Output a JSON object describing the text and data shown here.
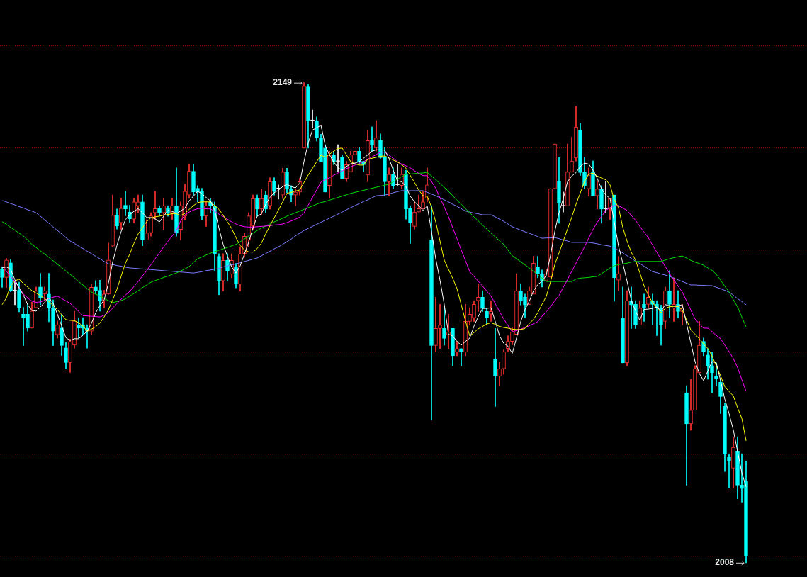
{
  "chart_data": {
    "type": "candlestick",
    "categories": [
      null,
      null,
      null,
      null,
      null,
      null,
      null,
      null,
      null,
      null,
      null,
      null,
      null,
      null,
      null,
      null,
      null,
      null,
      null,
      null,
      null,
      null,
      null,
      null,
      null,
      null,
      null,
      null,
      null,
      null,
      null,
      null,
      null,
      null,
      null,
      null,
      null,
      null,
      null,
      null,
      null,
      null,
      null,
      null,
      null,
      null,
      null,
      null,
      null,
      null,
      null,
      null,
      null,
      null,
      null,
      null,
      null,
      null,
      null,
      null,
      null,
      null,
      null,
      null,
      null,
      null,
      null,
      null,
      null,
      null,
      null,
      null,
      null,
      null,
      null,
      null,
      null,
      null,
      null,
      null,
      null,
      null,
      null,
      null,
      null,
      null,
      null,
      null,
      null,
      null,
      null,
      null,
      null,
      null,
      null,
      null,
      null,
      null,
      null,
      null,
      null,
      null,
      null,
      null,
      null,
      null,
      null,
      null,
      null,
      null,
      null,
      null,
      null,
      null,
      null,
      null,
      null,
      null,
      null,
      null,
      null,
      null,
      null,
      null,
      null,
      null,
      null,
      null,
      null,
      null,
      null,
      null,
      null,
      null,
      null,
      null,
      null,
      null,
      null,
      null,
      null,
      null,
      null,
      null,
      null,
      null,
      null,
      null,
      null,
      null,
      null,
      null,
      null,
      null,
      null,
      null,
      null,
      null,
      null,
      null,
      null,
      null,
      null,
      null,
      null,
      null,
      null,
      null,
      null,
      null,
      null,
      null,
      null,
      null,
      null,
      null
    ],
    "ohlc": [
      [
        2094.1,
        2094.9,
        2088.9,
        2091.8
      ],
      [
        2091.8,
        2097.4,
        2088.9,
        2096.9
      ],
      [
        2096.1,
        2097,
        2087.6,
        2087.8
      ],
      [
        2087.9,
        2090.8,
        2083.8,
        2087.9
      ],
      [
        2088,
        2090.4,
        2081.7,
        2082.8
      ],
      [
        2081,
        2083,
        2071.8,
        2079.9
      ],
      [
        2081,
        2084,
        2076,
        2076.9
      ],
      [
        2076.9,
        2084.5,
        2076.9,
        2081.9
      ],
      [
        2082.9,
        2089,
        2082.8,
        2087.8
      ],
      [
        2089,
        2093,
        2083.8,
        2085.9
      ],
      [
        2086.9,
        2089,
        2084.9,
        2087.9
      ],
      [
        2086.9,
        2093,
        2078.8,
        2082.9
      ],
      [
        2082.9,
        2085.2,
        2071.8,
        2076
      ],
      [
        2075,
        2079,
        2074,
        2077.9
      ],
      [
        2076.9,
        2081,
        2068.9,
        2071.8
      ],
      [
        2071.1,
        2072.7,
        2064.9,
        2066.8
      ],
      [
        2066.8,
        2073.7,
        2063.9,
        2072.9
      ],
      [
        2071.9,
        2081.9,
        2071,
        2079
      ],
      [
        2077.9,
        2080,
        2074,
        2076.9
      ],
      [
        2077.9,
        2080,
        2074.9,
        2076.9
      ],
      [
        2076.9,
        2077.9,
        2071,
        2076
      ],
      [
        2076,
        2089.9,
        2075,
        2088.9
      ],
      [
        2089,
        2090.9,
        2086.9,
        2088
      ],
      [
        2088,
        2091,
        2081.9,
        2085
      ],
      [
        2084.9,
        2088,
        2082.9,
        2086.9
      ],
      [
        2086.9,
        2101.9,
        2086.8,
        2096.9
      ],
      [
        2101,
        2116,
        2100.8,
        2110.1
      ],
      [
        2110.1,
        2111.9,
        2106,
        2106.9
      ],
      [
        2107.9,
        2115.1,
        2105.9,
        2112.1
      ],
      [
        2113,
        2117.2,
        2109.9,
        2111.9
      ],
      [
        2111,
        2113,
        2108,
        2109
      ],
      [
        2108.9,
        2115,
        2107.8,
        2114
      ],
      [
        2112.8,
        2116,
        2110.8,
        2114
      ],
      [
        2114,
        2116,
        2101.1,
        2102.8
      ],
      [
        2102.8,
        2108.8,
        2102.8,
        2104.9
      ],
      [
        2104.9,
        2110.8,
        2103.9,
        2109.9
      ],
      [
        2110.8,
        2117.1,
        2108.9,
        2112
      ],
      [
        2112,
        2112.9,
        2109.9,
        2110.8
      ],
      [
        2110.8,
        2115,
        2105.9,
        2112.9
      ],
      [
        2112,
        2112.9,
        2109.8,
        2110.8
      ],
      [
        2110.8,
        2115,
        2108.8,
        2112.9
      ],
      [
        2112.9,
        2124,
        2103.9,
        2104.8
      ],
      [
        2105.9,
        2114,
        2102.8,
        2112.9
      ],
      [
        2109.8,
        2119.2,
        2108.8,
        2117.1
      ],
      [
        2116,
        2125,
        2115,
        2123
      ],
      [
        2123,
        2125,
        2116,
        2116.9
      ],
      [
        2118,
        2118.8,
        2114,
        2116.9
      ],
      [
        2117.1,
        2118,
        2108.8,
        2109.8
      ],
      [
        2109.8,
        2114,
        2106.8,
        2112.9
      ],
      [
        2114,
        2115,
        2110.8,
        2112.8
      ],
      [
        2112.8,
        2114,
        2093.8,
        2098.8
      ],
      [
        2098,
        2098.8,
        2086.7,
        2090.8
      ],
      [
        2090.8,
        2098.8,
        2087.8,
        2096.8
      ],
      [
        2096.8,
        2098.8,
        2090.8,
        2093.8
      ],
      [
        2092.8,
        2098.8,
        2091.7,
        2096.8
      ],
      [
        2094.9,
        2095.9,
        2088.7,
        2089.8
      ],
      [
        2089.8,
        2100.8,
        2087.8,
        2098.8
      ],
      [
        2098.8,
        2104.9,
        2097.8,
        2103.9
      ],
      [
        2102.8,
        2110.8,
        2100.9,
        2109.9
      ],
      [
        2106.9,
        2116,
        2105.9,
        2115
      ],
      [
        2115,
        2116,
        2109.8,
        2111.9
      ],
      [
        2111.9,
        2117.8,
        2110.1,
        2115
      ],
      [
        2116,
        2117.1,
        2110.8,
        2111.9
      ],
      [
        2112.9,
        2121.1,
        2111.9,
        2119.9
      ],
      [
        2119.9,
        2121.1,
        2116,
        2117.1
      ],
      [
        2117.9,
        2119,
        2114.8,
        2117.9
      ],
      [
        2116,
        2123.9,
        2115,
        2122.8
      ],
      [
        2122.8,
        2123.9,
        2116.7,
        2117.9
      ],
      [
        2117.9,
        2118.8,
        2114,
        2116
      ],
      [
        2116,
        2117.9,
        2112.9,
        2116.9
      ],
      [
        2116.9,
        2120.9,
        2116,
        2119.9
      ],
      [
        2129.8,
        2149,
        2129.8,
        2148
      ],
      [
        2147.8,
        2148.5,
        2129.8,
        2137.9
      ],
      [
        2137.9,
        2141,
        2135.8,
        2137.9
      ],
      [
        2137.9,
        2139,
        2131.9,
        2132.8
      ],
      [
        2132.8,
        2133.9,
        2125.8,
        2125.9
      ],
      [
        2129.8,
        2130.8,
        2116.9,
        2116.9
      ],
      [
        2118.8,
        2128.9,
        2115,
        2127.8
      ],
      [
        2127.8,
        2128.9,
        2124.9,
        2125.9
      ],
      [
        2125.9,
        2130.8,
        2122.8,
        2125.9
      ],
      [
        2127,
        2127.8,
        2120.9,
        2120.9
      ],
      [
        2120.9,
        2125.9,
        2119.9,
        2124.9
      ],
      [
        2122.8,
        2128.9,
        2122.8,
        2127.8
      ],
      [
        2127.8,
        2128.9,
        2127.8,
        2128.9
      ],
      [
        2128.9,
        2129.9,
        2124.9,
        2125.9
      ],
      [
        2125.9,
        2125.9,
        2122.8,
        2124.9
      ],
      [
        2121.9,
        2135,
        2119.9,
        2132
      ],
      [
        2132,
        2136,
        2128.9,
        2130.9
      ],
      [
        2129.9,
        2137.9,
        2128.9,
        2132.8
      ],
      [
        2132,
        2134,
        2126.8,
        2127
      ],
      [
        2127.2,
        2129.9,
        2115.8,
        2119.9
      ],
      [
        2119.9,
        2124,
        2115.8,
        2122.1
      ],
      [
        2122.1,
        2124,
        2117.8,
        2118.8
      ],
      [
        2119,
        2125.1,
        2118.8,
        2119
      ],
      [
        2118.8,
        2124,
        2117.8,
        2122.1
      ],
      [
        2122.1,
        2123.3,
        2108.9,
        2111.9
      ],
      [
        2112.1,
        2112.9,
        2101.8,
        2107.7
      ],
      [
        2106.8,
        2114,
        2106,
        2111
      ],
      [
        2111,
        2116,
        2111,
        2112
      ],
      [
        2112,
        2117.1,
        2112,
        2114
      ],
      [
        2115,
        2124,
        2114,
        2119
      ],
      [
        2102.8,
        2112.9,
        2049.9,
        2071.8
      ],
      [
        2071.8,
        2086,
        2069.9,
        2076.8
      ],
      [
        2076.8,
        2083.9,
        2070.9,
        2077.8
      ],
      [
        2076.8,
        2082.9,
        2071.9,
        2073.9
      ],
      [
        2074.9,
        2081,
        2070.9,
        2075.8
      ],
      [
        2076.8,
        2076.8,
        2065.9,
        2068.8
      ],
      [
        2069.9,
        2073,
        2068.8,
        2070.9
      ],
      [
        2070.9,
        2070.9,
        2065.9,
        2069.9
      ],
      [
        2069.9,
        2083.9,
        2068.8,
        2078.9
      ],
      [
        2078.9,
        2082.9,
        2077.8,
        2081
      ],
      [
        2079.9,
        2085,
        2078.9,
        2083.9
      ],
      [
        2085,
        2090,
        2081.8,
        2086
      ],
      [
        2086,
        2087.9,
        2081.8,
        2082.7
      ],
      [
        2081.8,
        2082.7,
        2077.8,
        2079.9
      ],
      [
        2081,
        2085,
        2078.9,
        2081.8
      ],
      [
        2067.9,
        2076.8,
        2053.9,
        2062.8
      ],
      [
        2062.8,
        2066.9,
        2060,
        2065
      ],
      [
        2065,
        2070.5,
        2063.3,
        2070
      ],
      [
        2070.9,
        2074.7,
        2069.9,
        2073
      ],
      [
        2073,
        2077,
        2072,
        2075.8
      ],
      [
        2075.1,
        2092.9,
        2075.1,
        2087.9
      ],
      [
        2087.9,
        2090,
        2083.7,
        2084.8
      ],
      [
        2086,
        2086.9,
        2079.9,
        2083.7
      ],
      [
        2083.9,
        2089,
        2083.9,
        2087.9
      ],
      [
        2086.9,
        2098,
        2086.9,
        2096
      ],
      [
        2095,
        2098,
        2091.7,
        2092.8
      ],
      [
        2092.9,
        2094,
        2089,
        2090.8
      ],
      [
        2090.8,
        2094.2,
        2090.8,
        2092.9
      ],
      [
        2091.9,
        2117.9,
        2091.9,
        2117.9
      ],
      [
        2117.9,
        2131,
        2117.9,
        2131
      ],
      [
        2120,
        2127.2,
        2107.7,
        2113.8
      ],
      [
        2112.8,
        2116.9,
        2111,
        2112.8
      ],
      [
        2112.8,
        2131,
        2112.8,
        2122.8
      ],
      [
        2122.8,
        2133,
        2122.8,
        2126
      ],
      [
        2126.9,
        2142.1,
        2126,
        2136
      ],
      [
        2135,
        2137.1,
        2121.8,
        2122.6
      ],
      [
        2122.8,
        2127.2,
        2117.8,
        2118.8
      ],
      [
        2117.8,
        2124,
        2115.7,
        2121.9
      ],
      [
        2122.8,
        2126,
        2115.8,
        2115.8
      ],
      [
        2115.8,
        2119.9,
        2111.9,
        2117.8
      ],
      [
        2117.9,
        2118.8,
        2107.7,
        2111.9
      ],
      [
        2111.9,
        2119.9,
        2110.8,
        2111.9
      ],
      [
        2111.9,
        2115,
        2108.8,
        2115
      ],
      [
        2116,
        2116,
        2084.8,
        2091.7
      ],
      [
        2091,
        2098,
        2087.9,
        2092.9
      ],
      [
        2079.9,
        2089,
        2066.7,
        2066.7
      ],
      [
        2066.7,
        2087.9,
        2065.8,
        2085
      ],
      [
        2085,
        2089,
        2076.8,
        2083.7
      ],
      [
        2083.9,
        2085,
        2076.8,
        2077.8
      ],
      [
        2077.8,
        2085,
        2077.8,
        2082.8
      ],
      [
        2083.9,
        2086.9,
        2078.9,
        2082.8
      ],
      [
        2083.9,
        2089,
        2082.8,
        2086
      ],
      [
        2085,
        2086.9,
        2077.8,
        2083.9
      ],
      [
        2083.9,
        2085,
        2074.7,
        2082.8
      ],
      [
        2082.8,
        2083.7,
        2071.9,
        2077.8
      ],
      [
        2078.9,
        2089,
        2076.8,
        2087.9
      ],
      [
        2087.9,
        2093.8,
        2079.9,
        2083.9
      ],
      [
        2082.8,
        2091.7,
        2078.9,
        2083.9
      ],
      [
        2083.9,
        2087.9,
        2079.9,
        2081.8
      ],
      [
        2081.8,
        2083.9,
        2077.8,
        2082.8
      ],
      [
        2057.9,
        2060,
        2030.8,
        2048.8
      ],
      [
        2048.8,
        2061.9,
        2046.9,
        2052.8
      ],
      [
        2052.8,
        2065.9,
        2052.8,
        2065
      ],
      [
        2063.8,
        2078.9,
        2063.8,
        2071.9
      ],
      [
        2073,
        2074,
        2068.8,
        2069.9
      ],
      [
        2069,
        2070.9,
        2061.9,
        2065.9
      ],
      [
        2065.9,
        2069.9,
        2057.9,
        2063.8
      ],
      [
        2062.9,
        2066.7,
        2060,
        2061.9
      ],
      [
        2061,
        2061.9,
        2051.8,
        2056.8
      ],
      [
        2053.9,
        2054.9,
        2034.8,
        2039.9
      ],
      [
        2039,
        2040,
        2029.9,
        2037.8
      ],
      [
        2035.8,
        2045,
        2029.9,
        2041.9
      ],
      [
        2040.8,
        2045,
        2026.8,
        2030.8
      ],
      [
        2030.8,
        2040,
        2025.8,
        2029.8
      ],
      [
        2031.9,
        2037.9,
        2008,
        2010
      ]
    ],
    "colors": [
      "#00ffff",
      "#ff3232",
      "#00ffff",
      "#ffffff",
      "#00ffff",
      "#00ffff",
      "#00ffff",
      "#ff3232",
      "#ff3232",
      "#00ffff",
      "#ff3232",
      "#00ffff",
      "#00ffff",
      "#ff3232",
      "#00ffff",
      "#00ffff",
      "#ff3232",
      "#ff3232",
      "#00ffff",
      "#00ffff",
      "#00ffff",
      "#ff3232",
      "#00ffff",
      "#00ffff",
      "#ff3232",
      "#ff3232",
      "#ff3232",
      "#00ffff",
      "#ff3232",
      "#00ffff",
      "#00ffff",
      "#ff3232",
      "#ff3232",
      "#00ffff",
      "#ff3232",
      "#ff3232",
      "#ff3232",
      "#00ffff",
      "#ff3232",
      "#00ffff",
      "#ff3232",
      "#00ffff",
      "#ff3232",
      "#ff3232",
      "#ff3232",
      "#00ffff",
      "#00ffff",
      "#00ffff",
      "#ff3232",
      "#00ffff",
      "#00ffff",
      "#00ffff",
      "#ff3232",
      "#00ffff",
      "#ff3232",
      "#00ffff",
      "#ff3232",
      "#ff3232",
      "#ff3232",
      "#ff3232",
      "#00ffff",
      "#ff3232",
      "#00ffff",
      "#ff3232",
      "#00ffff",
      "#ffffff",
      "#ff3232",
      "#00ffff",
      "#00ffff",
      "#ff3232",
      "#ff3232",
      "#ff3232",
      "#00ffff",
      "#ffffff",
      "#00ffff",
      "#00ffff",
      "#00ffff",
      "#ff3232",
      "#00ffff",
      "#ffffff",
      "#00ffff",
      "#ff3232",
      "#ff3232",
      "#ff3232",
      "#00ffff",
      "#00ffff",
      "#ff3232",
      "#00ffff",
      "#ff3232",
      "#00ffff",
      "#00ffff",
      "#ff3232",
      "#00ffff",
      "#ffffff",
      "#ff3232",
      "#00ffff",
      "#00ffff",
      "#ff3232",
      "#ff3232",
      "#ff3232",
      "#ff3232",
      "#00ffff",
      "#ff3232",
      "#ff3232",
      "#00ffff",
      "#ff3232",
      "#00ffff",
      "#ff3232",
      "#00ffff",
      "#ff3232",
      "#ff3232",
      "#ff3232",
      "#ff3232",
      "#00ffff",
      "#00ffff",
      "#ff3232",
      "#00ffff",
      "#ff3232",
      "#ff3232",
      "#ff3232",
      "#ff3232",
      "#ff3232",
      "#00ffff",
      "#00ffff",
      "#ff3232",
      "#ff3232",
      "#00ffff",
      "#00ffff",
      "#ff3232",
      "#ff3232",
      "#ff3232",
      "#00ffff",
      "#ffffff",
      "#ff3232",
      "#ff3232",
      "#ff3232",
      "#00ffff",
      "#00ffff",
      "#ff3232",
      "#00ffff",
      "#ff3232",
      "#00ffff",
      "#ffffff",
      "#ff3232",
      "#00ffff",
      "#ff3232",
      "#00ffff",
      "#ff3232",
      "#00ffff",
      "#00ffff",
      "#ff3232",
      "#00ffff",
      "#ff3232",
      "#00ffff",
      "#00ffff",
      "#00ffff",
      "#ff3232",
      "#00ffff",
      "#ff3232",
      "#00ffff",
      "#ff3232",
      "#00ffff",
      "#ff3232",
      "#ff3232",
      "#ff3232",
      "#00ffff",
      "#00ffff",
      "#00ffff",
      "#00ffff",
      "#00ffff",
      "#00ffff",
      "#00ffff",
      "#ff3232",
      "#00ffff",
      "#00ffff",
      "#00ffff"
    ],
    "series": [
      {
        "type": "line",
        "color": "#ffffff",
        "values": [
          2094.6,
          2094.9,
          2094.2,
          2091.1,
          2088.7,
          2086.6,
          2083.8,
          2082.1,
          2081.9,
          2083.1,
          2084.5,
          2085.8,
          2084.2,
          2081,
          2077.6,
          2074.1,
          2073.3,
          2073.8,
          2073.8,
          2074.8,
          2076,
          2078.3,
          2081.4,
          2083.5,
          2085.2,
          2090.1,
          2096.3,
          2101.2,
          2105.3,
          2108.8,
          2110.2,
          2111.2,
          2112,
          2110.8,
          2109.4,
          2109.4,
          2109,
          2108.1,
          2109.8,
          2111.5,
          2111.2,
          2110.6,
          2111.3,
          2112.2,
          2114.3,
          2115.7,
          2117.1,
          2116.4,
          2115.3,
          2114.3,
          2111.5,
          2106.3,
          2101.5,
          2098,
          2094.9,
          2093.1,
          2095.2,
          2098.7,
          2102.2,
          2106.3,
          2109.8,
          2110.5,
          2113.3,
          2115.3,
          2116.7,
          2117.4,
          2118.5,
          2119.2,
          2118.5,
          2118.1,
          2119.5,
          2125.8,
          2131.3,
          2135.1,
          2135.8,
          2136.5,
          2130.6,
          2127.8,
          2125.8,
          2124,
          2123.3,
          2124.4,
          2125.2,
          2125.4,
          2125.8,
          2126.8,
          2127.8,
          2128.9,
          2129.3,
          2129.3,
          2129.2,
          2126.8,
          2123.3,
          2120.2,
          2119.9,
          2118.5,
          2115.7,
          2114,
          2112.9,
          2111.5,
          2112.8,
          2105.3,
          2097.3,
          2091,
          2083.9,
          2075.1,
          2074.6,
          2073,
          2071.9,
          2073,
          2074,
          2077.5,
          2080.3,
          2082.7,
          2082.7,
          2082.9,
          2078.9,
          2074.7,
          2072.4,
          2071.6,
          2069.5,
          2074,
          2078.9,
          2082.4,
          2084.8,
          2087.9,
          2089.7,
          2090.7,
          2092.4,
          2098.3,
          2105.3,
          2110.8,
          2115,
          2119.9,
          2121.6,
          2122.6,
          2124.4,
          2125.4,
          2125.1,
          2123.3,
          2120.9,
          2117.8,
          2116,
          2115,
          2108,
          2101,
          2096,
          2090.7,
          2085.1,
          2082,
          2079.2,
          2082.4,
          2082.5,
          2082.7,
          2083.1,
          2082,
          2083.8,
          2083.5,
          2083.4,
          2083.4,
          2083.8,
          2078.2,
          2072.6,
          2067.1,
          2063.6,
          2061.5,
          2064.3,
          2067.1,
          2066.7,
          2061.5,
          2056,
          2051.8,
          2047,
          2040.7,
          2034.4,
          2030.3
        ]
      },
      {
        "type": "line",
        "color": "#ffff00",
        "values": [
          2083.8,
          2085.8,
          2089.4,
          2090.8,
          2091.3,
          2090,
          2089,
          2087.9,
          2087.2,
          2086.5,
          2085.6,
          2084.7,
          2083.5,
          2082.3,
          2080.9,
          2079.4,
          2079.2,
          2079.1,
          2078.5,
          2077.5,
          2076,
          2076.6,
          2077.3,
          2078.4,
          2080.2,
          2082.3,
          2085.2,
          2088.3,
          2092.2,
          2096,
          2098.6,
          2101.8,
          2104.6,
          2106.4,
          2108.2,
          2109.3,
          2109.6,
          2109.8,
          2110.1,
          2110.3,
          2110.5,
          2110.5,
          2110,
          2110.6,
          2111.8,
          2112.9,
          2113.8,
          2114,
          2114,
          2114,
          2112.9,
          2111.8,
          2110.1,
          2108.1,
          2106.2,
          2103.5,
          2101.2,
          2099.9,
          2099.3,
          2099.2,
          2100.3,
          2101.9,
          2104.6,
          2107,
          2109.3,
          2111.6,
          2114,
          2116.5,
          2116.8,
          2117.2,
          2117.5,
          2119.7,
          2121.9,
          2123.8,
          2125.8,
          2127.7,
          2127.1,
          2128,
          2128.9,
          2129.7,
          2129.8,
          2127.8,
          2125.8,
          2125.2,
          2124.8,
          2124.8,
          2126.5,
          2126.8,
          2127.1,
          2127.4,
          2127.5,
          2126.9,
          2126.3,
          2125.7,
          2124.9,
          2123.9,
          2121.8,
          2119.7,
          2117.5,
          2115.8,
          2115.6,
          2112.5,
          2108.1,
          2102.5,
          2096.9,
          2094.2,
          2091.5,
          2088.5,
          2083.8,
          2079,
          2074.6,
          2075.6,
          2076.7,
          2077.4,
          2078.1,
          2078.5,
          2078,
          2077.4,
          2077.1,
          2076.9,
          2076.6,
          2076.5,
          2076.5,
          2076.8,
          2078.2,
          2079.5,
          2081.4,
          2083.9,
          2086.2,
          2090.5,
          2095.6,
          2099,
          2102.5,
          2106,
          2109.5,
          2113.3,
          2116.6,
          2120,
          2122.2,
          2122.4,
          2121.6,
          2121,
          2120.5,
          2119,
          2114.6,
          2112.3,
          2106.5,
          2102.5,
          2099.2,
          2096.9,
          2093.2,
          2089.4,
          2086.6,
          2084.4,
          2082.9,
          2081.5,
          2082.7,
          2083.2,
          2083.3,
          2083.3,
          2082.3,
          2079.3,
          2076.4,
          2075.1,
          2073.8,
          2072.3,
          2070.9,
          2068.7,
          2065.8,
          2062.9,
          2059.7,
          2058.3,
          2057,
          2053.5,
          2050.4,
          2043.8
        ]
      },
      {
        "type": "line",
        "color": "#ff00ff",
        "values": [
          2095.1,
          2093.6,
          2092.1,
          2090.6,
          2088.8,
          2086.9,
          2085.8,
          2084.8,
          2084.5,
          2084.6,
          2085.1,
          2085.6,
          2086,
          2086.3,
          2085.6,
          2084.9,
          2084.2,
          2083,
          2081.8,
          2080.6,
          2080.5,
          2080.4,
          2080.3,
          2080.2,
          2080.7,
          2081.5,
          2082.8,
          2084.1,
          2085.4,
          2086.6,
          2087.7,
          2089.1,
          2090.6,
          2092.2,
          2093.8,
          2095.6,
          2097.3,
          2099,
          2100.8,
          2102.4,
          2104,
          2105.6,
          2108.4,
          2110.2,
          2111,
          2111.6,
          2112,
          2112.1,
          2112,
          2111.9,
          2111.2,
          2110.4,
          2109.7,
          2108.9,
          2108.1,
          2107.5,
          2107,
          2106.7,
          2106.6,
          2106.6,
          2106.7,
          2106.8,
          2106.9,
          2107,
          2107.2,
          2107.3,
          2107.5,
          2107.9,
          2108.4,
          2108.9,
          2109.5,
          2110.8,
          2113,
          2115.3,
          2117.5,
          2119.8,
          2120.5,
          2121.1,
          2121.8,
          2122.5,
          2123.1,
          2123.8,
          2124.3,
          2124.8,
          2125.3,
          2125.8,
          2126.5,
          2127.2,
          2127.9,
          2128.6,
          2128.6,
          2127.7,
          2126.8,
          2125.8,
          2125.1,
          2124.6,
          2124,
          2123.1,
          2122.4,
          2121.7,
          2121.7,
          2120,
          2118,
          2115.2,
          2112.5,
          2109.6,
          2106.4,
          2103.2,
          2099.9,
          2096.7,
          2093.5,
          2092.1,
          2090.7,
          2089.3,
          2087.8,
          2086.3,
          2084.1,
          2081.8,
          2079.6,
          2077.7,
          2075.8,
          2076.2,
          2076.6,
          2077.1,
          2077.6,
          2078.2,
          2078.8,
          2080.4,
          2081.7,
          2083.2,
          2084.9,
          2086.5,
          2088.9,
          2091.2,
          2093.6,
          2096,
          2098.4,
          2100.8,
          2103.4,
          2105.9,
          2108,
          2109.7,
          2111.5,
          2112.3,
          2112.9,
          2112.9,
          2112.2,
          2111.5,
          2110,
          2108.6,
          2106.8,
          2105.1,
          2103.5,
          2101.3,
          2099.2,
          2097.1,
          2095,
          2092.9,
          2091.1,
          2089.3,
          2087.5,
          2084.9,
          2082.2,
          2079.6,
          2078.2,
          2076.9,
          2076.9,
          2075.9,
          2074.8,
          2073.8,
          2071.9,
          2070,
          2068,
          2065.3,
          2061.8,
          2058.3
        ]
      },
      {
        "type": "line",
        "color": "#00dd00",
        "values": [
          2108.2,
          2107.4,
          2106.5,
          2105.7,
          2104.8,
          2104,
          2102.8,
          2101.5,
          2100.6,
          2099.6,
          2098.7,
          2097.7,
          2096.7,
          2095.7,
          2094.7,
          2093.7,
          2092.7,
          2091.7,
          2090.6,
          2089.6,
          2088.5,
          2087.5,
          2086.9,
          2086.3,
          2085.6,
          2085,
          2084.4,
          2084.7,
          2085,
          2085.5,
          2086.3,
          2087.1,
          2087.9,
          2088.8,
          2089.6,
          2090.4,
          2090.9,
          2091.3,
          2091.8,
          2092.2,
          2092.7,
          2093.1,
          2093.7,
          2094.3,
          2095,
          2096.2,
          2097.3,
          2097.8,
          2098.4,
          2098.9,
          2099.4,
          2099.8,
          2100.2,
          2100.6,
          2101.1,
          2101.5,
          2102.3,
          2103.1,
          2104,
          2104.8,
          2105.6,
          2106.3,
          2106.9,
          2107.5,
          2108.1,
          2108.6,
          2109.2,
          2109.8,
          2110.3,
          2110.8,
          2111.3,
          2111.8,
          2112.3,
          2112.8,
          2113.3,
          2113.8,
          2114.1,
          2114.5,
          2114.9,
          2115.3,
          2115.7,
          2116.1,
          2116.5,
          2116.8,
          2117.1,
          2117.4,
          2117.7,
          2118,
          2118.3,
          2118.6,
          2118.9,
          2119.2,
          2119.9,
          2120.7,
          2121.4,
          2122.1,
          2122.2,
          2122.3,
          2122.4,
          2122.5,
          2122.7,
          2121.6,
          2120.5,
          2119.4,
          2118.3,
          2117.1,
          2115.8,
          2114.5,
          2113.3,
          2112,
          2110.8,
          2109.6,
          2108.4,
          2107.2,
          2106,
          2104.8,
          2103.7,
          2102.6,
          2101.5,
          2099.8,
          2098.2,
          2097.3,
          2096.4,
          2095.5,
          2094.6,
          2093.6,
          2092.6,
          2091.6,
          2090.6,
          2090.6,
          2090.6,
          2090.6,
          2090.6,
          2090.6,
          2090.6,
          2091.3,
          2091.6,
          2091.7,
          2091.8,
          2092,
          2092.1,
          2092.9,
          2093.7,
          2094.6,
          2095.2,
          2095.6,
          2095.8,
          2096,
          2096.3,
          2096.5,
          2096.5,
          2096.5,
          2096.5,
          2096.5,
          2096.5,
          2096.5,
          2096.9,
          2097.3,
          2097.6,
          2097.9,
          2098.1,
          2097.5,
          2096.8,
          2096.3,
          2095.9,
          2095.4,
          2094.6,
          2093.9,
          2092.7,
          2091,
          2089.2,
          2087.5,
          2085.3,
          2083.1,
          2080.2,
          2077.3
        ]
      },
      {
        "type": "line",
        "color": "#7b7bff",
        "values": [
          2114.4,
          2114,
          2113.5,
          2113.1,
          2112.6,
          2112.2,
          2111.7,
          2111.3,
          2110.8,
          2109.8,
          2108.7,
          2107.7,
          2106.6,
          2105.6,
          2104.6,
          2103.5,
          2102.5,
          2101.8,
          2101,
          2100.3,
          2099.5,
          2098.8,
          2098,
          2097.3,
          2096.5,
          2095.8,
          2095.6,
          2095.3,
          2095.1,
          2094.8,
          2094.6,
          2094.5,
          2094.4,
          2094.3,
          2094.2,
          2094.1,
          2094,
          2093.9,
          2093.8,
          2093.7,
          2093.6,
          2093.5,
          2093.4,
          2093.3,
          2093.2,
          2093.1,
          2093.3,
          2093.5,
          2093.8,
          2094,
          2094.2,
          2094.5,
          2094.9,
          2095.2,
          2095.5,
          2095.8,
          2096.1,
          2096.5,
          2096.8,
          2097.2,
          2097.5,
          2098.2,
          2098.8,
          2099.5,
          2100.2,
          2100.8,
          2101.5,
          2102.3,
          2103.1,
          2104,
          2104.8,
          2105.6,
          2106.2,
          2106.8,
          2107.4,
          2108,
          2108.6,
          2109.2,
          2109.8,
          2110.4,
          2111,
          2111.7,
          2112.3,
          2112.9,
          2113.5,
          2114.1,
          2114.6,
          2115.2,
          2115.8,
          2115.9,
          2116,
          2116.3,
          2116.7,
          2117,
          2117.3,
          2117.3,
          2117.3,
          2117.3,
          2117.3,
          2117.3,
          2116.8,
          2116.3,
          2115.8,
          2115.2,
          2114.6,
          2114,
          2113.3,
          2112.7,
          2112,
          2111.3,
          2111,
          2110.7,
          2110.5,
          2110.2,
          2110.2,
          2110.2,
          2109.6,
          2108.9,
          2108.3,
          2107.5,
          2106.7,
          2106.2,
          2105.7,
          2105.2,
          2104.8,
          2104.3,
          2103.8,
          2103.3,
          2103.4,
          2103.4,
          2103.5,
          2103.2,
          2102.8,
          2102.5,
          2102.1,
          2102.1,
          2102.1,
          2102.1,
          2102.1,
          2101.9,
          2101.7,
          2101.4,
          2101.2,
          2101,
          2100.4,
          2099.8,
          2099,
          2098.2,
          2097.4,
          2096.6,
          2095.9,
          2095.1,
          2094.3,
          2093.5,
          2093.2,
          2092.8,
          2092.5,
          2092.1,
          2091.6,
          2091.1,
          2090.6,
          2090.1,
          2089.6,
          2089.6,
          2089.5,
          2089.5,
          2089.4,
          2089.4,
          2088.9,
          2088.5,
          2088,
          2087.5,
          2086.6,
          2085.6,
          2084.7,
          2083.8
        ]
      }
    ],
    "ylim": [
      2003.8,
      2173.3
    ],
    "yticks": [
      {
        "value": 2010,
        "label": null
      },
      {
        "value": 2040,
        "label": null
      },
      {
        "value": 2070,
        "label": null
      },
      {
        "value": 2100,
        "label": null
      },
      {
        "value": 2130,
        "label": null
      },
      {
        "value": 2160,
        "label": null
      }
    ],
    "grid": "y",
    "tick_labels": false,
    "annotations": [
      "2149",
      "2008"
    ]
  }
}
